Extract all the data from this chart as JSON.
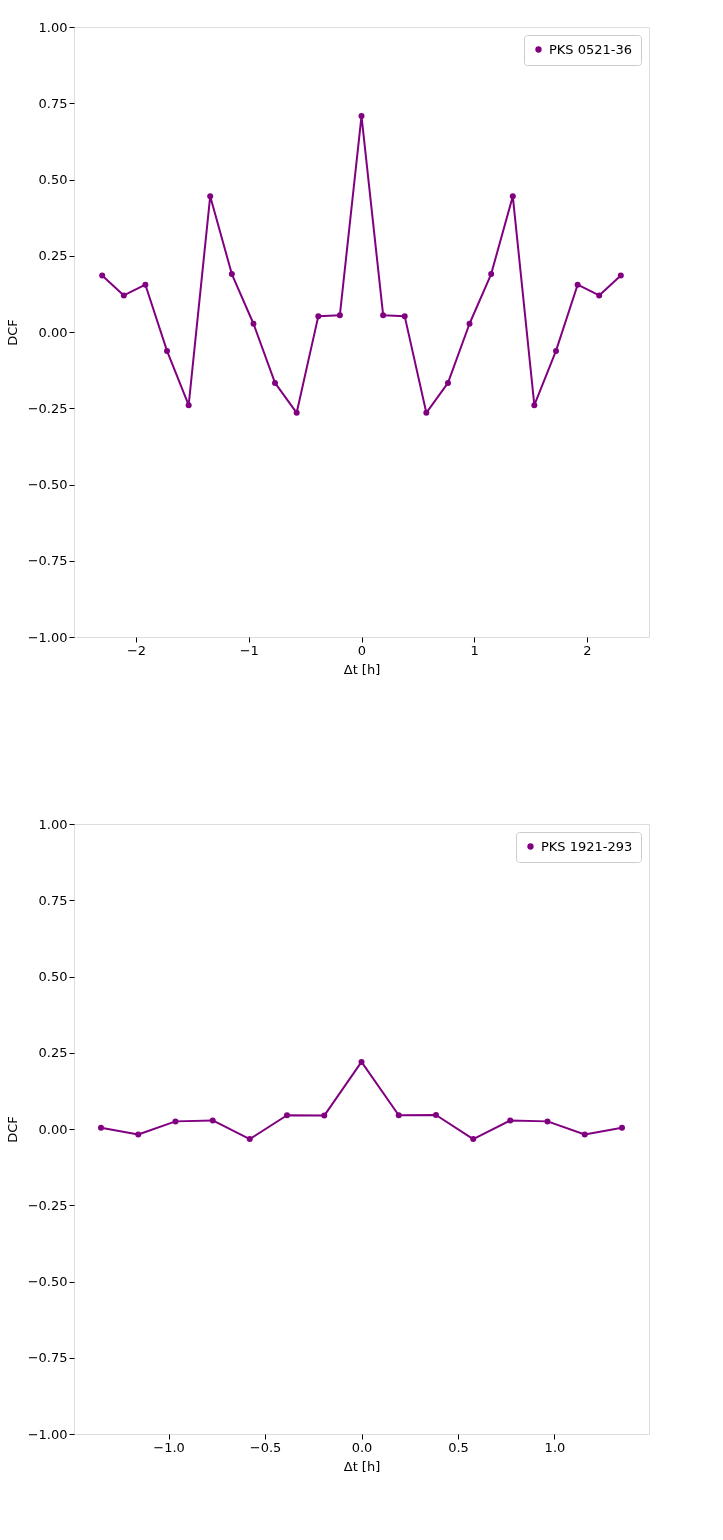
{
  "chart_data": [
    {
      "type": "line",
      "xlabel": "Δt [h]",
      "ylabel": "DCF",
      "legend": "top right",
      "marker": "circle",
      "line_style": "solid",
      "grid": false,
      "x": [
        -2.3,
        -2.108,
        -1.917,
        -1.725,
        -1.533,
        -1.342,
        -1.15,
        -0.958,
        -0.767,
        -0.575,
        -0.383,
        -0.192,
        0,
        0.192,
        0.383,
        0.575,
        0.767,
        0.958,
        1.15,
        1.342,
        1.533,
        1.725,
        1.917,
        2.108,
        2.3
      ],
      "series": [
        {
          "name": "PKS 0521-36",
          "color": "#800080",
          "values": [
            0.185,
            0.12,
            0.155,
            -0.062,
            -0.24,
            0.445,
            0.19,
            0.027,
            -0.167,
            -0.265,
            0.052,
            0.055,
            0.708,
            0.055,
            0.052,
            -0.265,
            -0.167,
            0.027,
            0.19,
            0.445,
            -0.24,
            -0.062,
            0.155,
            0.12,
            0.185
          ]
        }
      ],
      "xlim": [
        -2.55,
        2.55
      ],
      "ylim": [
        -1,
        1
      ],
      "xticks": [
        {
          "value": -2,
          "label": "−2"
        },
        {
          "value": -1,
          "label": "−1"
        },
        0,
        1,
        2
      ],
      "yticks": [
        {
          "value": -1,
          "label": "−1.00"
        },
        {
          "value": -0.75,
          "label": "−0.75"
        },
        {
          "value": -0.5,
          "label": "−0.50"
        },
        {
          "value": -0.25,
          "label": "−0.25"
        },
        {
          "value": 0,
          "label": "0.00"
        },
        {
          "value": 0.25,
          "label": "0.25"
        },
        {
          "value": 0.5,
          "label": "0.50"
        },
        {
          "value": 0.75,
          "label": "0.75"
        },
        {
          "value": 1,
          "label": "1.00"
        }
      ]
    },
    {
      "type": "line",
      "xlabel": "Δt [h]",
      "ylabel": "DCF",
      "legend": "top right",
      "marker": "circle",
      "line_style": "solid",
      "grid": false,
      "x": [
        -1.35,
        -1.157,
        -0.964,
        -0.771,
        -0.579,
        -0.386,
        -0.193,
        0,
        0.193,
        0.386,
        0.579,
        0.771,
        0.964,
        1.157,
        1.35
      ],
      "series": [
        {
          "name": "PKS 1921-293",
          "color": "#800080",
          "values": [
            0.004,
            -0.018,
            0.025,
            0.028,
            -0.033,
            0.045,
            0.044,
            0.22,
            0.045,
            0.046,
            -0.033,
            0.028,
            0.025,
            -0.018,
            0.004
          ]
        }
      ],
      "xlim": [
        -1.49,
        1.49
      ],
      "ylim": [
        -1,
        1
      ],
      "xticks": [
        {
          "value": -1,
          "label": "−1.0"
        },
        {
          "value": -0.5,
          "label": "−0.5"
        },
        {
          "value": 0,
          "label": "0.0"
        },
        {
          "value": 0.5,
          "label": "0.5"
        },
        {
          "value": 1,
          "label": "1.0"
        }
      ],
      "yticks": [
        {
          "value": -1,
          "label": "−1.00"
        },
        {
          "value": -0.75,
          "label": "−0.75"
        },
        {
          "value": -0.5,
          "label": "−0.50"
        },
        {
          "value": -0.25,
          "label": "−0.25"
        },
        {
          "value": 0,
          "label": "0.00"
        },
        {
          "value": 0.25,
          "label": "0.25"
        },
        {
          "value": 0.5,
          "label": "0.50"
        },
        {
          "value": 0.75,
          "label": "0.75"
        },
        {
          "value": 1,
          "label": "1.00"
        }
      ]
    }
  ]
}
